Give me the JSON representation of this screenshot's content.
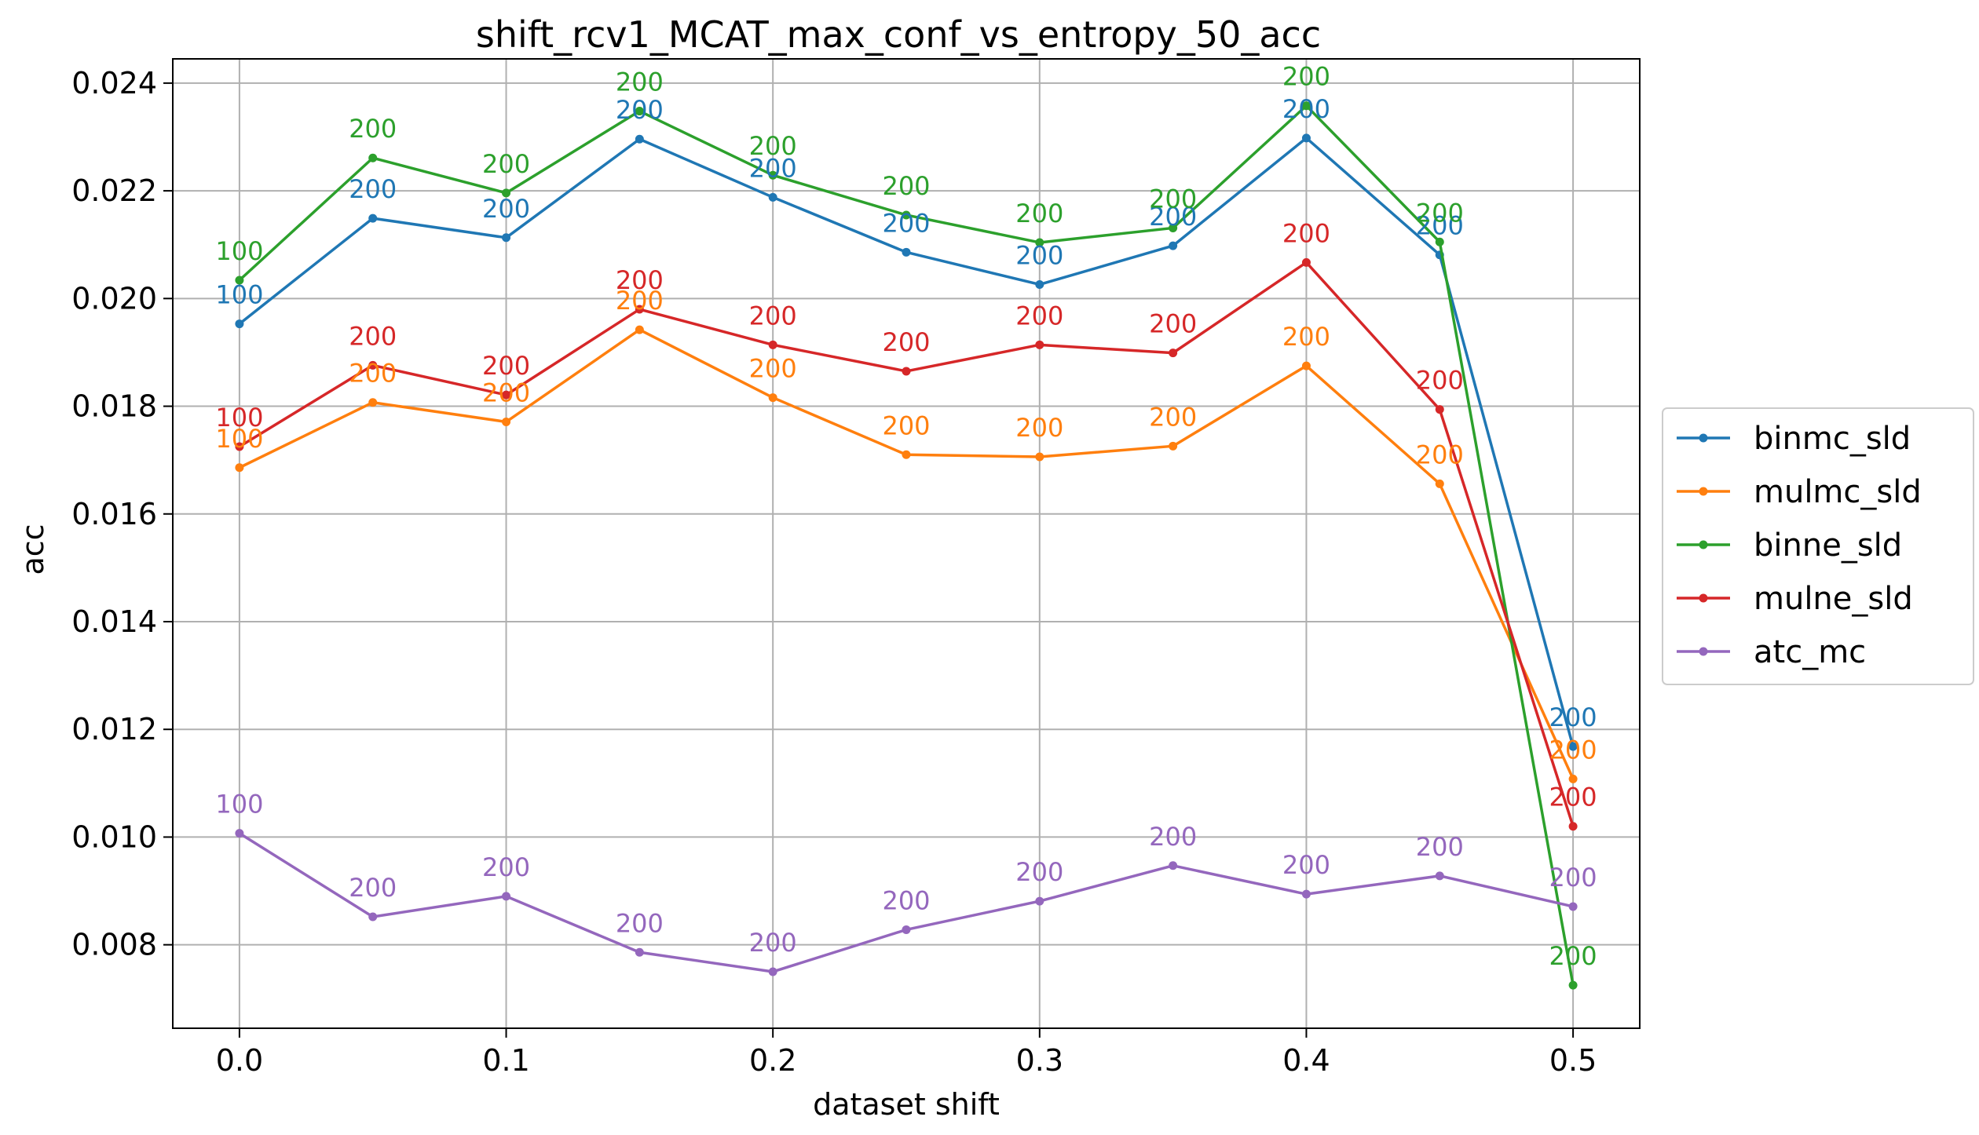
{
  "chart_data": {
    "type": "line",
    "title": "shift_rcv1_MCAT_max_conf_vs_entropy_50_acc",
    "xlabel": "dataset shift",
    "ylabel": "acc",
    "x": [
      0.0,
      0.05,
      0.1,
      0.15,
      0.2,
      0.25,
      0.3,
      0.35,
      0.4,
      0.45,
      0.5
    ],
    "xlim": [
      -0.025,
      0.525
    ],
    "ylim": [
      0.00645,
      0.02445
    ],
    "xticks": [
      0.0,
      0.1,
      0.2,
      0.3,
      0.4,
      0.5
    ],
    "xtick_labels": [
      "0.0",
      "0.1",
      "0.2",
      "0.3",
      "0.4",
      "0.5"
    ],
    "yticks": [
      0.008,
      0.01,
      0.012,
      0.014,
      0.016,
      0.018,
      0.02,
      0.022,
      0.024
    ],
    "ytick_labels": [
      "0.008",
      "0.010",
      "0.012",
      "0.014",
      "0.016",
      "0.018",
      "0.020",
      "0.022",
      "0.024"
    ],
    "grid": true,
    "legend_position": "right, outside",
    "series": [
      {
        "name": "binmc_sld",
        "color": "#1f77b4",
        "values": [
          0.01953,
          0.02149,
          0.02113,
          0.02296,
          0.02188,
          0.02086,
          0.02026,
          0.02098,
          0.02298,
          0.02081,
          0.01168
        ],
        "point_labels": [
          "100",
          "200",
          "200",
          "200",
          "200",
          "200",
          "200",
          "200",
          "200",
          "200",
          "200"
        ]
      },
      {
        "name": "mulmc_sld",
        "color": "#ff7f0e",
        "values": [
          0.01686,
          0.01807,
          0.01771,
          0.01942,
          0.01816,
          0.0171,
          0.01706,
          0.01726,
          0.01875,
          0.01656,
          0.01108
        ],
        "point_labels": [
          "100",
          "200",
          "200",
          "200",
          "200",
          "200",
          "200",
          "200",
          "200",
          "200",
          "200"
        ]
      },
      {
        "name": "binne_sld",
        "color": "#2ca02c",
        "values": [
          0.02034,
          0.02261,
          0.02196,
          0.02348,
          0.02229,
          0.02155,
          0.02104,
          0.02131,
          0.02358,
          0.02105,
          0.00725
        ],
        "point_labels": [
          "100",
          "200",
          "200",
          "200",
          "200",
          "200",
          "200",
          "200",
          "200",
          "200",
          "200"
        ]
      },
      {
        "name": "mulne_sld",
        "color": "#d62728",
        "values": [
          0.01725,
          0.01876,
          0.01821,
          0.0198,
          0.01914,
          0.01865,
          0.01914,
          0.01899,
          0.02067,
          0.01794,
          0.0102
        ],
        "point_labels": [
          "100",
          "200",
          "200",
          "200",
          "200",
          "200",
          "200",
          "200",
          "200",
          "200",
          "200"
        ]
      },
      {
        "name": "atc_mc",
        "color": "#9467bd",
        "values": [
          0.01007,
          0.00852,
          0.0089,
          0.00786,
          0.0075,
          0.00828,
          0.00881,
          0.00947,
          0.00894,
          0.00928,
          0.00871
        ],
        "point_labels": [
          "100",
          "200",
          "200",
          "200",
          "200",
          "200",
          "200",
          "200",
          "200",
          "200",
          "200"
        ]
      }
    ]
  }
}
